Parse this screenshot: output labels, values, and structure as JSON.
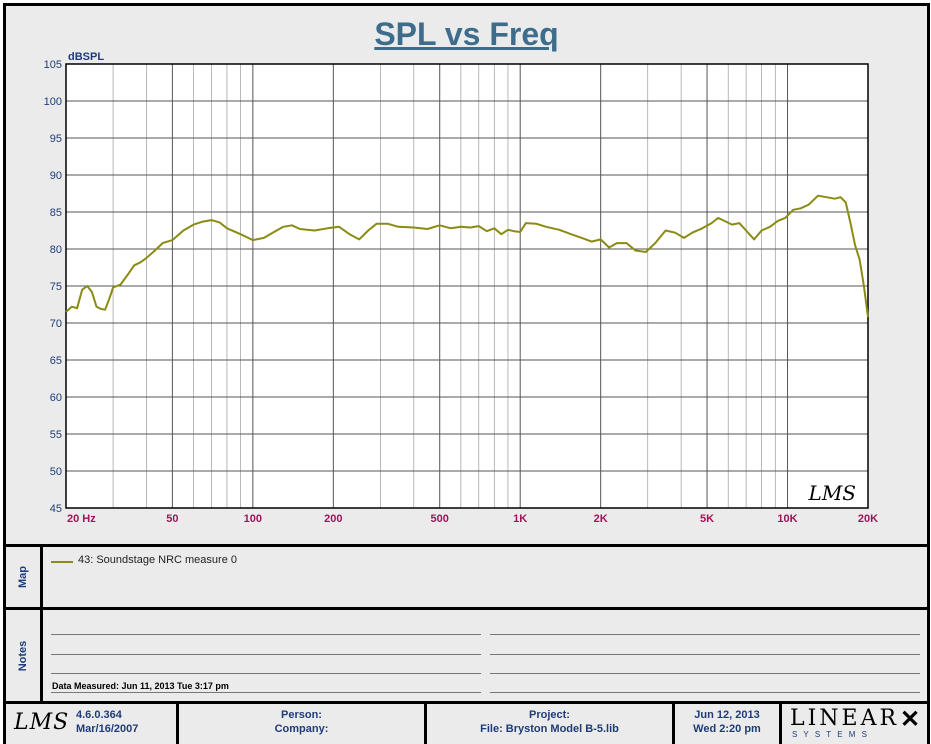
{
  "chart_data": {
    "type": "line",
    "title": "SPL vs Freq",
    "ylabel": "dBSPL",
    "xscale": "log",
    "xlim": [
      20,
      20000
    ],
    "ylim": [
      45,
      105
    ],
    "yticks": [
      45,
      50,
      55,
      60,
      65,
      70,
      75,
      80,
      85,
      90,
      95,
      100,
      105
    ],
    "xtick_values": [
      20,
      50,
      100,
      200,
      500,
      1000,
      2000,
      5000,
      10000,
      20000
    ],
    "xtick_labels": [
      "20 Hz",
      "50",
      "100",
      "200",
      "500",
      "1K",
      "2K",
      "5K",
      "10K",
      "20K"
    ],
    "grid": true,
    "series": [
      {
        "name": "43: Soundstage NRC measure 0",
        "color": "#8b8b14",
        "points": [
          [
            20,
            71.5
          ],
          [
            21,
            72.2
          ],
          [
            22,
            72.0
          ],
          [
            23,
            74.5
          ],
          [
            24,
            75.0
          ],
          [
            25,
            74.2
          ],
          [
            26,
            72.2
          ],
          [
            27,
            71.9
          ],
          [
            28,
            71.8
          ],
          [
            29,
            73.2
          ],
          [
            30,
            74.8
          ],
          [
            32,
            75.2
          ],
          [
            34,
            76.5
          ],
          [
            36,
            77.8
          ],
          [
            38,
            78.2
          ],
          [
            40,
            78.8
          ],
          [
            43,
            79.8
          ],
          [
            46,
            80.8
          ],
          [
            50,
            81.2
          ],
          [
            55,
            82.5
          ],
          [
            60,
            83.3
          ],
          [
            65,
            83.7
          ],
          [
            70,
            83.9
          ],
          [
            75,
            83.6
          ],
          [
            80,
            82.8
          ],
          [
            90,
            82.0
          ],
          [
            100,
            81.2
          ],
          [
            110,
            81.5
          ],
          [
            120,
            82.3
          ],
          [
            130,
            83.0
          ],
          [
            140,
            83.2
          ],
          [
            150,
            82.7
          ],
          [
            170,
            82.5
          ],
          [
            190,
            82.8
          ],
          [
            210,
            83.0
          ],
          [
            230,
            82.0
          ],
          [
            250,
            81.3
          ],
          [
            270,
            82.5
          ],
          [
            290,
            83.4
          ],
          [
            320,
            83.4
          ],
          [
            350,
            83.0
          ],
          [
            400,
            82.9
          ],
          [
            450,
            82.7
          ],
          [
            500,
            83.2
          ],
          [
            550,
            82.8
          ],
          [
            600,
            83.0
          ],
          [
            650,
            82.9
          ],
          [
            700,
            83.1
          ],
          [
            750,
            82.4
          ],
          [
            800,
            82.8
          ],
          [
            850,
            82.0
          ],
          [
            900,
            82.6
          ],
          [
            950,
            82.4
          ],
          [
            1000,
            82.3
          ],
          [
            1050,
            83.5
          ],
          [
            1150,
            83.4
          ],
          [
            1250,
            83.0
          ],
          [
            1400,
            82.6
          ],
          [
            1550,
            82.0
          ],
          [
            1700,
            81.5
          ],
          [
            1850,
            81.0
          ],
          [
            2000,
            81.3
          ],
          [
            2150,
            80.2
          ],
          [
            2300,
            80.8
          ],
          [
            2500,
            80.8
          ],
          [
            2700,
            79.8
          ],
          [
            2950,
            79.6
          ],
          [
            3200,
            80.8
          ],
          [
            3500,
            82.5
          ],
          [
            3800,
            82.2
          ],
          [
            4100,
            81.5
          ],
          [
            4400,
            82.2
          ],
          [
            4800,
            82.8
          ],
          [
            5200,
            83.5
          ],
          [
            5500,
            84.2
          ],
          [
            5800,
            83.8
          ],
          [
            6200,
            83.3
          ],
          [
            6600,
            83.5
          ],
          [
            7000,
            82.5
          ],
          [
            7500,
            81.3
          ],
          [
            8000,
            82.5
          ],
          [
            8600,
            83.0
          ],
          [
            9200,
            83.8
          ],
          [
            9800,
            84.2
          ],
          [
            10500,
            85.3
          ],
          [
            11200,
            85.5
          ],
          [
            12000,
            86.0
          ],
          [
            13000,
            87.2
          ],
          [
            14000,
            87.0
          ],
          [
            15000,
            86.8
          ],
          [
            15800,
            87.0
          ],
          [
            16500,
            86.3
          ],
          [
            17200,
            83.5
          ],
          [
            17900,
            80.5
          ],
          [
            18600,
            78.6
          ],
          [
            19300,
            75.0
          ],
          [
            20000,
            70.8
          ]
        ]
      }
    ]
  },
  "legend": {
    "label": "43: Soundstage NRC measure 0"
  },
  "sections": {
    "map_label": "Map",
    "notes_label": "Notes"
  },
  "notes": {
    "measured": "Data Measured: Jun 11, 2013  Tue  3:17 pm"
  },
  "footer": {
    "logo_text": "LMS",
    "watermark": "LMS",
    "version": "4.6.0.364",
    "version_date": "Mar/16/2007",
    "person_label": "Person:",
    "company_label": "Company:",
    "project_label": "Project:",
    "file_label": "File: Bryston Model B-5.lib",
    "date": "Jun 12, 2013",
    "time": "Wed  2:20 pm",
    "brand": "LINEAR",
    "brand_sub": "S Y S T E M S"
  }
}
